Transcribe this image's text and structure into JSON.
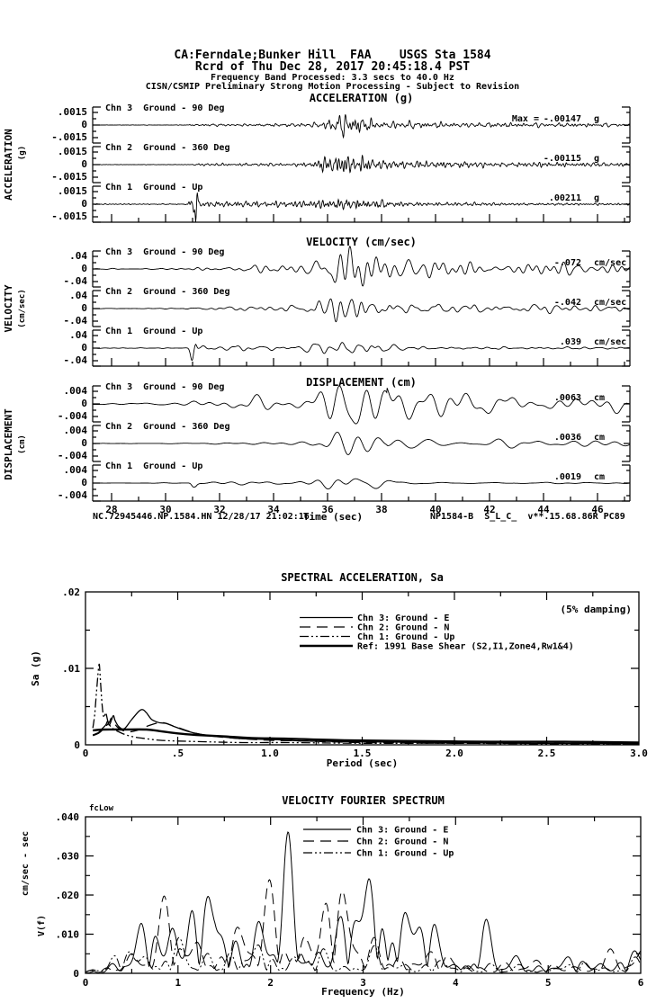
{
  "header": {
    "line1": "CA:Ferndale;Bunker Hill  FAA    USGS Sta 1584",
    "line2": "Rcrd of Thu Dec 28, 2017 20:45:18.4 PST",
    "line3": "Frequency Band Processed: 3.3 secs to 40.0 Hz",
    "line4": "CISN/CSMIP Preliminary Strong Motion Processing - Subject to Revision"
  },
  "footer": {
    "left": "NC.72945446.NP.1584.HN 12/28/17 21:02:16",
    "right": "NP1584-B  S_L_C_  v**.15.68.86R PC89"
  },
  "chart_data": [
    {
      "id": "acceleration",
      "type": "line",
      "title": "ACCELERATION (g)",
      "ylabel": "ACCELERATION",
      "yunits": "(g)",
      "ylim": [
        -0.0015,
        0.0015
      ],
      "ytick_labels": [
        ".0015",
        "0",
        "-.0015"
      ],
      "x_range_sec": [
        27.3,
        47.2
      ],
      "channels": [
        {
          "label": "Chn 3  Ground - 90 Deg",
          "peak_prefix": "Max =",
          "peak_label": "-.00147",
          "peak_value": -0.00147,
          "units": "g"
        },
        {
          "label": "Chn 2  Ground - 360 Deg",
          "peak_label": "-.00115",
          "peak_value": -0.00115,
          "units": "g"
        },
        {
          "label": "Chn 1  Ground - Up",
          "peak_label": ".00211",
          "peak_value": 0.00211,
          "units": "g"
        }
      ]
    },
    {
      "id": "velocity",
      "type": "line",
      "title": "VELOCITY (cm/sec)",
      "ylabel": "VELOCITY",
      "yunits": "(cm/sec)",
      "ylim": [
        -0.04,
        0.04
      ],
      "ytick_labels": [
        ".04",
        "0",
        "-.04"
      ],
      "x_range_sec": [
        27.3,
        47.2
      ],
      "channels": [
        {
          "label": "Chn 3  Ground - 90 Deg",
          "peak_label": "-.072",
          "peak_value": -0.072,
          "units": "cm/sec"
        },
        {
          "label": "Chn 2  Ground - 360 Deg",
          "peak_label": "-.042",
          "peak_value": -0.042,
          "units": "cm/sec"
        },
        {
          "label": "Chn 1  Ground - Up",
          "peak_label": ".039",
          "peak_value": 0.039,
          "units": "cm/sec"
        }
      ]
    },
    {
      "id": "displacement",
      "type": "line",
      "title": "DISPLACEMENT (cm)",
      "ylabel": "DISPLACEMENT",
      "yunits": "(cm)",
      "ylim": [
        -0.004,
        0.004
      ],
      "ytick_labels": [
        ".004",
        "0",
        "-.004"
      ],
      "x_range_sec": [
        27.3,
        47.2
      ],
      "xlabel": "Time (sec)",
      "xtick_values": [
        28,
        30,
        32,
        34,
        36,
        38,
        40,
        42,
        44,
        46
      ],
      "xtick_labels": [
        "28",
        "30",
        "32",
        "34",
        "36",
        "38",
        "40",
        "42",
        "44",
        "46"
      ],
      "channels": [
        {
          "label": "Chn 3  Ground - 90 Deg",
          "peak_label": ".0063",
          "peak_value": 0.0063,
          "units": "cm"
        },
        {
          "label": "Chn 2  Ground - 360 Deg",
          "peak_label": ".0036",
          "peak_value": 0.0036,
          "units": "cm"
        },
        {
          "label": "Chn 1  Ground - Up",
          "peak_label": ".0019",
          "peak_value": 0.0019,
          "units": "cm"
        }
      ]
    },
    {
      "id": "spectral_acceleration",
      "type": "line",
      "title": "SPECTRAL ACCELERATION, Sa",
      "damping_note": "(5% damping)",
      "ylabel": "Sa (g)",
      "xlabel": "Period (sec)",
      "xlim": [
        0,
        3
      ],
      "ylim": [
        0,
        0.02
      ],
      "xtick_values": [
        0,
        0.5,
        1.0,
        1.5,
        2.0,
        2.5,
        3.0
      ],
      "xtick_labels": [
        "0",
        ".5",
        "1.0",
        "1.5",
        "2.0",
        "2.5",
        "3.0"
      ],
      "ytick_values": [
        0.02,
        0.01,
        0
      ],
      "ytick_labels": [
        ".02",
        ".01",
        "0"
      ],
      "legend_position": "top-center-inside",
      "grid": false,
      "series": [
        {
          "name": "Chn 3: Ground - E",
          "style": "solid",
          "points": [
            [
              0.04,
              0.0013
            ],
            [
              0.07,
              0.0016
            ],
            [
              0.09,
              0.0021
            ],
            [
              0.11,
              0.0026
            ],
            [
              0.12,
              0.0031
            ],
            [
              0.13,
              0.0026
            ],
            [
              0.15,
              0.0038
            ],
            [
              0.16,
              0.0032
            ],
            [
              0.18,
              0.0024
            ],
            [
              0.21,
              0.0021
            ],
            [
              0.25,
              0.0033
            ],
            [
              0.29,
              0.0044
            ],
            [
              0.31,
              0.0046
            ],
            [
              0.33,
              0.0042
            ],
            [
              0.36,
              0.0033
            ],
            [
              0.4,
              0.0029
            ],
            [
              0.44,
              0.0028
            ],
            [
              0.48,
              0.0024
            ],
            [
              0.55,
              0.0018
            ],
            [
              0.62,
              0.0014
            ],
            [
              0.72,
              0.0011
            ],
            [
              0.85,
              0.0008
            ],
            [
              1.0,
              0.0007
            ],
            [
              1.2,
              0.0005
            ],
            [
              1.5,
              0.0004
            ],
            [
              1.9,
              0.0003
            ],
            [
              2.4,
              0.0002
            ],
            [
              3.0,
              0.0002
            ]
          ]
        },
        {
          "name": "Chn 2: Ground - N",
          "style": "dash",
          "points": [
            [
              0.04,
              0.0012
            ],
            [
              0.07,
              0.0015
            ],
            [
              0.09,
              0.0019
            ],
            [
              0.11,
              0.0024
            ],
            [
              0.13,
              0.003
            ],
            [
              0.14,
              0.0035
            ],
            [
              0.15,
              0.0031
            ],
            [
              0.17,
              0.0024
            ],
            [
              0.2,
              0.0019
            ],
            [
              0.24,
              0.0017
            ],
            [
              0.28,
              0.0019
            ],
            [
              0.33,
              0.0024
            ],
            [
              0.38,
              0.0028
            ],
            [
              0.42,
              0.0029
            ],
            [
              0.46,
              0.0026
            ],
            [
              0.52,
              0.0021
            ],
            [
              0.6,
              0.0015
            ],
            [
              0.7,
              0.0011
            ],
            [
              0.85,
              0.0008
            ],
            [
              1.0,
              0.0006
            ],
            [
              1.2,
              0.0005
            ],
            [
              1.5,
              0.0003
            ],
            [
              2.0,
              0.0002
            ],
            [
              2.5,
              0.0002
            ],
            [
              3.0,
              0.0001
            ]
          ]
        },
        {
          "name": "Chn 1: Ground - Up",
          "style": "dashdot",
          "points": [
            [
              0.04,
              0.0022
            ],
            [
              0.05,
              0.004
            ],
            [
              0.06,
              0.007
            ],
            [
              0.07,
              0.0098
            ],
            [
              0.075,
              0.0105
            ],
            [
              0.08,
              0.0088
            ],
            [
              0.09,
              0.0052
            ],
            [
              0.1,
              0.0036
            ],
            [
              0.11,
              0.0042
            ],
            [
              0.12,
              0.0032
            ],
            [
              0.13,
              0.0026
            ],
            [
              0.15,
              0.0021
            ],
            [
              0.18,
              0.0017
            ],
            [
              0.22,
              0.0013
            ],
            [
              0.27,
              0.001
            ],
            [
              0.33,
              0.0008
            ],
            [
              0.4,
              0.0006
            ],
            [
              0.5,
              0.0005
            ],
            [
              0.65,
              0.0004
            ],
            [
              0.85,
              0.0003
            ],
            [
              1.1,
              0.0003
            ],
            [
              1.5,
              0.0002
            ],
            [
              2.0,
              0.0002
            ],
            [
              2.6,
              0.0001
            ],
            [
              3.0,
              0.0001
            ]
          ]
        },
        {
          "name": "Ref: 1991 Base Shear (S2,I1,Zone4,Rw1&4)",
          "style": "thick",
          "points": [
            [
              0.04,
              0.0019
            ],
            [
              0.1,
              0.002
            ],
            [
              0.2,
              0.002
            ],
            [
              0.33,
              0.002
            ],
            [
              0.4,
              0.0018
            ],
            [
              0.5,
              0.0015
            ],
            [
              0.6,
              0.0013
            ],
            [
              0.75,
              0.0011
            ],
            [
              0.9,
              0.0009
            ],
            [
              1.1,
              0.0008
            ],
            [
              1.4,
              0.0006
            ],
            [
              1.8,
              0.0005
            ],
            [
              2.2,
              0.0004
            ],
            [
              2.6,
              0.0004
            ],
            [
              3.0,
              0.0003
            ]
          ]
        }
      ]
    },
    {
      "id": "velocity_fourier_spectrum",
      "type": "line",
      "title": "VELOCITY FOURIER SPECTRUM",
      "corner_label": "fcLow",
      "ylabel_line1": "cm/sec - sec",
      "ylabel_line2": "V(f)",
      "xlabel": "Frequency (Hz)",
      "xlim": [
        0,
        6
      ],
      "ylim": [
        0,
        0.04
      ],
      "xtick_values": [
        0,
        1,
        2,
        3,
        4,
        5,
        6
      ],
      "xtick_labels": [
        "0",
        "1",
        "2",
        "3",
        "4",
        "5",
        "6"
      ],
      "ytick_values": [
        0.04,
        0.03,
        0.02,
        0.01,
        0
      ],
      "ytick_labels": [
        ".040",
        ".030",
        ".020",
        ".010",
        "0"
      ],
      "grid": false,
      "series": [
        {
          "name": "Chn 3: Ground - E",
          "style": "solid",
          "seed": 11,
          "envelope": [
            [
              0,
              0.0005
            ],
            [
              0.2,
              0.002
            ],
            [
              0.35,
              0.005
            ],
            [
              0.5,
              0.007
            ],
            [
              0.65,
              0.012
            ],
            [
              0.8,
              0.02
            ],
            [
              0.9,
              0.025
            ],
            [
              1.0,
              0.02
            ],
            [
              1.1,
              0.026
            ],
            [
              1.25,
              0.016
            ],
            [
              1.4,
              0.022
            ],
            [
              1.55,
              0.013
            ],
            [
              1.7,
              0.012
            ],
            [
              1.85,
              0.016
            ],
            [
              2.0,
              0.02
            ],
            [
              2.15,
              0.026
            ],
            [
              2.3,
              0.029
            ],
            [
              2.45,
              0.016
            ],
            [
              2.6,
              0.011
            ],
            [
              2.75,
              0.013
            ],
            [
              2.9,
              0.022
            ],
            [
              3.05,
              0.028
            ],
            [
              3.2,
              0.03
            ],
            [
              3.35,
              0.024
            ],
            [
              3.5,
              0.021
            ],
            [
              3.65,
              0.016
            ],
            [
              3.8,
              0.01
            ],
            [
              4.0,
              0.006
            ],
            [
              4.15,
              0.01
            ],
            [
              4.3,
              0.012
            ],
            [
              4.45,
              0.007
            ],
            [
              4.6,
              0.005
            ],
            [
              4.8,
              0.004
            ],
            [
              5.0,
              0.003
            ],
            [
              5.3,
              0.004
            ],
            [
              5.6,
              0.005
            ],
            [
              6.0,
              0.005
            ]
          ]
        },
        {
          "name": "Chn 2: Ground - N",
          "style": "dash",
          "seed": 22,
          "envelope": [
            [
              0,
              0.0004
            ],
            [
              0.25,
              0.003
            ],
            [
              0.45,
              0.006
            ],
            [
              0.6,
              0.009
            ],
            [
              0.8,
              0.013
            ],
            [
              0.95,
              0.017
            ],
            [
              1.1,
              0.015
            ],
            [
              1.3,
              0.011
            ],
            [
              1.5,
              0.009
            ],
            [
              1.7,
              0.013
            ],
            [
              1.9,
              0.017
            ],
            [
              2.1,
              0.022
            ],
            [
              2.25,
              0.026
            ],
            [
              2.4,
              0.02
            ],
            [
              2.55,
              0.024
            ],
            [
              2.7,
              0.021
            ],
            [
              2.85,
              0.017
            ],
            [
              3.0,
              0.012
            ],
            [
              3.2,
              0.009
            ],
            [
              3.4,
              0.008
            ],
            [
              3.6,
              0.006
            ],
            [
              3.8,
              0.005
            ],
            [
              4.0,
              0.004
            ],
            [
              4.3,
              0.003
            ],
            [
              4.6,
              0.003
            ],
            [
              5.0,
              0.003
            ],
            [
              5.4,
              0.004
            ],
            [
              5.7,
              0.005
            ],
            [
              6.0,
              0.006
            ]
          ]
        },
        {
          "name": "Chn 1: Ground - Up",
          "style": "dashdot",
          "seed": 33,
          "envelope": [
            [
              0,
              0.0004
            ],
            [
              0.3,
              0.004
            ],
            [
              0.5,
              0.007
            ],
            [
              0.7,
              0.009
            ],
            [
              0.9,
              0.008
            ],
            [
              1.1,
              0.007
            ],
            [
              1.4,
              0.006
            ],
            [
              1.7,
              0.007
            ],
            [
              2.0,
              0.007
            ],
            [
              2.3,
              0.006
            ],
            [
              2.6,
              0.005
            ],
            [
              3.0,
              0.006
            ],
            [
              3.4,
              0.004
            ],
            [
              3.8,
              0.003
            ],
            [
              4.2,
              0.003
            ],
            [
              4.6,
              0.002
            ],
            [
              5.0,
              0.002
            ],
            [
              5.5,
              0.003
            ],
            [
              6.0,
              0.003
            ]
          ]
        }
      ]
    }
  ]
}
